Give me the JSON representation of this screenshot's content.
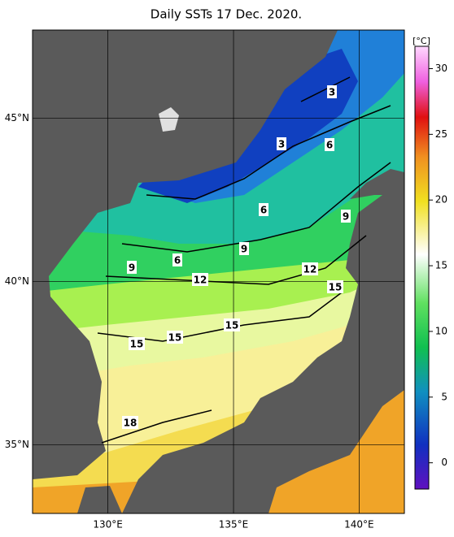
{
  "chart_data": {
    "type": "map",
    "title": "Daily SSTs 17 Dec. 2020.",
    "xlim": [
      127,
      141.8
    ],
    "ylim": [
      32.9,
      47.7
    ],
    "xticks": [
      {
        "value": 130,
        "label": "130°E"
      },
      {
        "value": 135,
        "label": "135°E"
      },
      {
        "value": 140,
        "label": "140°E"
      }
    ],
    "yticks": [
      {
        "value": 35,
        "label": "35°N"
      },
      {
        "value": 40,
        "label": "40°N"
      },
      {
        "value": 45,
        "label": "45°N"
      }
    ],
    "grid": true,
    "colorbar": {
      "label": "[°C]",
      "lim": [
        -2,
        31.7
      ],
      "ticks": [
        0,
        5,
        10,
        15,
        20,
        25,
        30
      ]
    },
    "contour_labels": [
      3,
      3,
      6,
      6,
      9,
      9,
      6,
      9,
      12,
      12,
      15,
      15,
      15,
      15,
      18
    ]
  }
}
